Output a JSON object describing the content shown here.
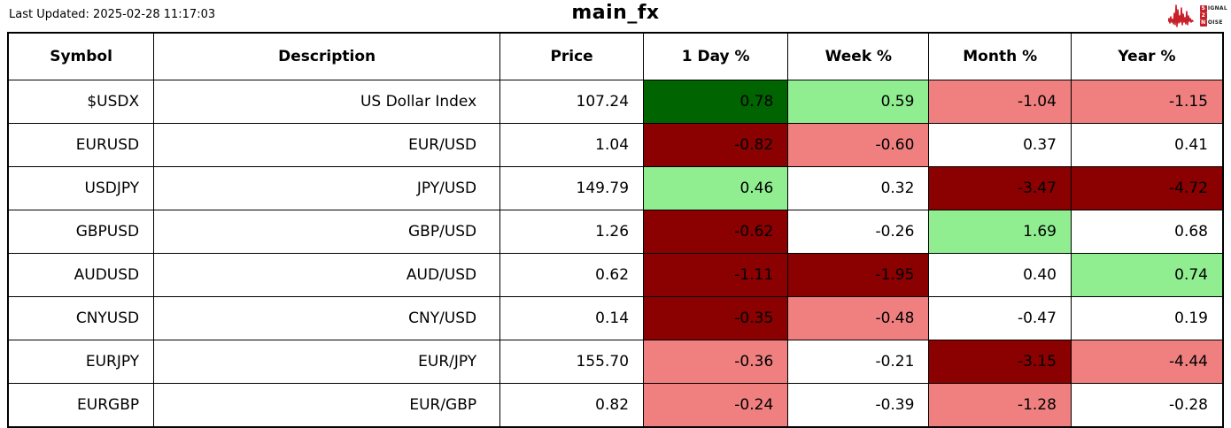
{
  "header": {
    "last_updated": "Last Updated: 2025-02-28 11:17:03",
    "title": "main_fx"
  },
  "logo": {
    "line1_boxed": "S",
    "line1_rest": "IGNAL",
    "line2_boxed": "2",
    "line3_boxed": "N",
    "line3_rest": "OISE",
    "accent_color": "#C8202A"
  },
  "colors": {
    "strong_gain": "#006400",
    "gain": "#90EE90",
    "loss": "#F08080",
    "strong_loss": "#8B0000",
    "neutral": "#FFFFFF"
  },
  "table": {
    "headers": [
      "Symbol",
      "Description",
      "Price",
      "1 Day %",
      "Week %",
      "Month %",
      "Year %"
    ],
    "rows": [
      {
        "symbol": "$USDX",
        "description": "US Dollar Index",
        "price": "107.24",
        "changes": [
          {
            "value": "0.78",
            "bg": "strong_gain"
          },
          {
            "value": "0.59",
            "bg": "gain"
          },
          {
            "value": "-1.04",
            "bg": "loss"
          },
          {
            "value": "-1.15",
            "bg": "loss"
          }
        ]
      },
      {
        "symbol": "EURUSD",
        "description": "EUR/USD",
        "price": "1.04",
        "changes": [
          {
            "value": "-0.82",
            "bg": "strong_loss"
          },
          {
            "value": "-0.60",
            "bg": "loss"
          },
          {
            "value": "0.37",
            "bg": "neutral"
          },
          {
            "value": "0.41",
            "bg": "neutral"
          }
        ]
      },
      {
        "symbol": "USDJPY",
        "description": "JPY/USD",
        "price": "149.79",
        "changes": [
          {
            "value": "0.46",
            "bg": "gain"
          },
          {
            "value": "0.32",
            "bg": "neutral"
          },
          {
            "value": "-3.47",
            "bg": "strong_loss"
          },
          {
            "value": "-4.72",
            "bg": "strong_loss"
          }
        ]
      },
      {
        "symbol": "GBPUSD",
        "description": "GBP/USD",
        "price": "1.26",
        "changes": [
          {
            "value": "-0.62",
            "bg": "strong_loss"
          },
          {
            "value": "-0.26",
            "bg": "neutral"
          },
          {
            "value": "1.69",
            "bg": "gain"
          },
          {
            "value": "0.68",
            "bg": "neutral"
          }
        ]
      },
      {
        "symbol": "AUDUSD",
        "description": "AUD/USD",
        "price": "0.62",
        "changes": [
          {
            "value": "-1.11",
            "bg": "strong_loss"
          },
          {
            "value": "-1.95",
            "bg": "strong_loss"
          },
          {
            "value": "0.40",
            "bg": "neutral"
          },
          {
            "value": "0.74",
            "bg": "gain"
          }
        ]
      },
      {
        "symbol": "CNYUSD",
        "description": "CNY/USD",
        "price": "0.14",
        "changes": [
          {
            "value": "-0.35",
            "bg": "strong_loss"
          },
          {
            "value": "-0.48",
            "bg": "loss"
          },
          {
            "value": "-0.47",
            "bg": "neutral"
          },
          {
            "value": "0.19",
            "bg": "neutral"
          }
        ]
      },
      {
        "symbol": "EURJPY",
        "description": "EUR/JPY",
        "price": "155.70",
        "changes": [
          {
            "value": "-0.36",
            "bg": "loss"
          },
          {
            "value": "-0.21",
            "bg": "neutral"
          },
          {
            "value": "-3.15",
            "bg": "strong_loss"
          },
          {
            "value": "-4.44",
            "bg": "loss"
          }
        ]
      },
      {
        "symbol": "EURGBP",
        "description": "EUR/GBP",
        "price": "0.82",
        "changes": [
          {
            "value": "-0.24",
            "bg": "loss"
          },
          {
            "value": "-0.39",
            "bg": "neutral"
          },
          {
            "value": "-1.28",
            "bg": "loss"
          },
          {
            "value": "-0.28",
            "bg": "neutral"
          }
        ]
      }
    ]
  },
  "chart_data": {
    "type": "table",
    "title": "main_fx",
    "subtitle": "Last Updated: 2025-02-28 11:17:03",
    "columns": [
      "Symbol",
      "Description",
      "Price",
      "1 Day %",
      "Week %",
      "Month %",
      "Year %"
    ],
    "rows": [
      [
        "$USDX",
        "US Dollar Index",
        107.24,
        0.78,
        0.59,
        -1.04,
        -1.15
      ],
      [
        "EURUSD",
        "EUR/USD",
        1.04,
        -0.82,
        -0.6,
        0.37,
        0.41
      ],
      [
        "USDJPY",
        "JPY/USD",
        149.79,
        0.46,
        0.32,
        -3.47,
        -4.72
      ],
      [
        "GBPUSD",
        "GBP/USD",
        1.26,
        -0.62,
        -0.26,
        1.69,
        0.68
      ],
      [
        "AUDUSD",
        "AUD/USD",
        0.62,
        -1.11,
        -1.95,
        0.4,
        0.74
      ],
      [
        "CNYUSD",
        "CNY/USD",
        0.14,
        -0.35,
        -0.48,
        -0.47,
        0.19
      ],
      [
        "EURJPY",
        "EUR/JPY",
        155.7,
        -0.36,
        -0.21,
        -3.15,
        -4.44
      ],
      [
        "EURGBP",
        "EUR/GBP",
        0.82,
        -0.24,
        -0.39,
        -1.28,
        -0.28
      ]
    ],
    "cell_color_legend": {
      "#006400": "strong gain",
      "#90EE90": "gain",
      "#F08080": "loss",
      "#8B0000": "strong loss",
      "#FFFFFF": "neutral"
    },
    "layout_hints": {
      "grid": "on",
      "header": "bold centered",
      "cells": "right-aligned"
    }
  }
}
